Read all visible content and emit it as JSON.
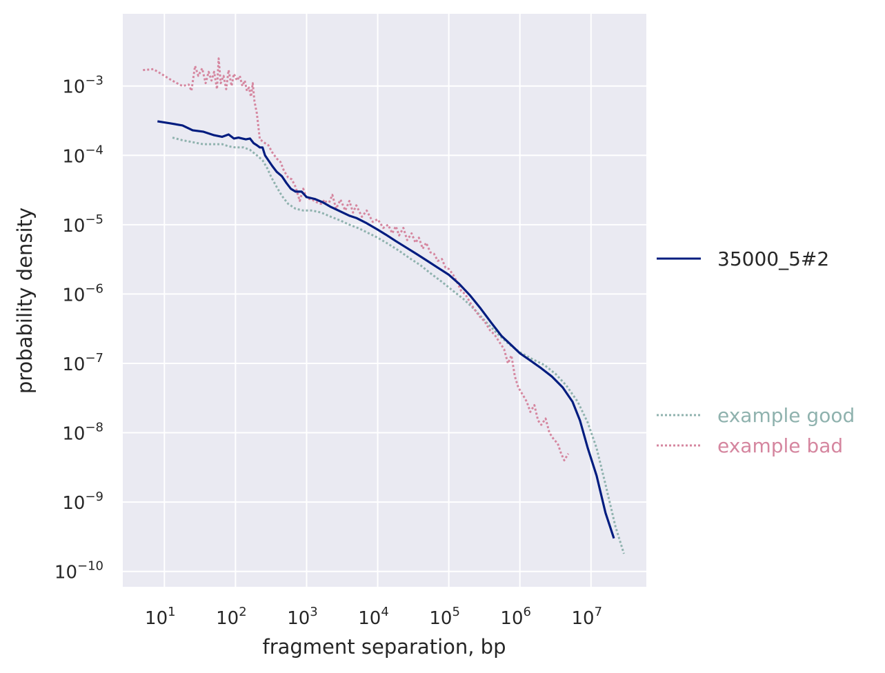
{
  "chart_data": {
    "type": "line",
    "xlabel": "fragment separation, bp",
    "ylabel": "probability density",
    "x_scale": "log",
    "y_scale": "log",
    "xlim": [
      2.6,
      60000000.0
    ],
    "ylim": [
      6e-11,
      0.011
    ],
    "x_ticks": [
      {
        "value": 10,
        "base": "10",
        "exp": "1"
      },
      {
        "value": 100,
        "base": "10",
        "exp": "2"
      },
      {
        "value": 1000,
        "base": "10",
        "exp": "3"
      },
      {
        "value": 10000,
        "base": "10",
        "exp": "4"
      },
      {
        "value": 100000,
        "base": "10",
        "exp": "5"
      },
      {
        "value": 1000000,
        "base": "10",
        "exp": "6"
      },
      {
        "value": 10000000,
        "base": "10",
        "exp": "7"
      }
    ],
    "y_ticks": [
      {
        "value": 0.001,
        "base": "10",
        "exp": "−3"
      },
      {
        "value": 0.0001,
        "base": "10",
        "exp": "−4"
      },
      {
        "value": 1e-05,
        "base": "10",
        "exp": "−5"
      },
      {
        "value": 1e-06,
        "base": "10",
        "exp": "−6"
      },
      {
        "value": 1e-07,
        "base": "10",
        "exp": "−7"
      },
      {
        "value": 1e-08,
        "base": "10",
        "exp": "−8"
      },
      {
        "value": 1e-09,
        "base": "10",
        "exp": "−9"
      },
      {
        "value": 1e-10,
        "base": "10",
        "exp": "−10"
      }
    ],
    "grid": true,
    "background": "#eaeaf2",
    "series": [
      {
        "name": "35000_5#2",
        "color": "#001c7f",
        "style": "solid",
        "points": [
          [
            8,
            0.00031
          ],
          [
            12,
            0.00029
          ],
          [
            18,
            0.00027
          ],
          [
            25,
            0.00023
          ],
          [
            35,
            0.00022
          ],
          [
            50,
            0.000195
          ],
          [
            65,
            0.000185
          ],
          [
            80,
            0.0002
          ],
          [
            95,
            0.000175
          ],
          [
            110,
            0.00018
          ],
          [
            125,
            0.000175
          ],
          [
            140,
            0.00017
          ],
          [
            160,
            0.000175
          ],
          [
            180,
            0.00015
          ],
          [
            200,
            0.00014
          ],
          [
            220,
            0.00013
          ],
          [
            240,
            0.00013
          ],
          [
            260,
            0.0001
          ],
          [
            290,
            8.5e-05
          ],
          [
            330,
            7e-05
          ],
          [
            380,
            5.8e-05
          ],
          [
            450,
            5e-05
          ],
          [
            520,
            4e-05
          ],
          [
            600,
            3.3e-05
          ],
          [
            700,
            3e-05
          ],
          [
            850,
            3e-05
          ],
          [
            1000,
            2.5e-05
          ],
          [
            1300,
            2.35e-05
          ],
          [
            1700,
            2.1e-05
          ],
          [
            2200,
            1.8e-05
          ],
          [
            3000,
            1.55e-05
          ],
          [
            4000,
            1.35e-05
          ],
          [
            5000,
            1.25e-05
          ],
          [
            7000,
            1.05e-05
          ],
          [
            10000,
            8.5e-06
          ],
          [
            13000,
            7.2e-06
          ],
          [
            18000,
            5.8e-06
          ],
          [
            25000,
            4.7e-06
          ],
          [
            35000,
            3.8e-06
          ],
          [
            50000,
            3e-06
          ],
          [
            70000,
            2.4e-06
          ],
          [
            100000,
            1.9e-06
          ],
          [
            140000,
            1.4e-06
          ],
          [
            200000,
            9.5e-07
          ],
          [
            280000,
            6.2e-07
          ],
          [
            400000,
            3.8e-07
          ],
          [
            550000,
            2.5e-07
          ],
          [
            750000,
            1.85e-07
          ],
          [
            1000000,
            1.4e-07
          ],
          [
            1400000,
            1.1e-07
          ],
          [
            2000000,
            8.5e-08
          ],
          [
            2800000,
            6.5e-08
          ],
          [
            4000000,
            4.5e-08
          ],
          [
            5500000,
            2.8e-08
          ],
          [
            7000000,
            1.5e-08
          ],
          [
            9000000,
            6e-09
          ],
          [
            12000000,
            2.4e-09
          ],
          [
            16000000,
            7e-10
          ],
          [
            21000000,
            3e-10
          ]
        ]
      },
      {
        "name": "example good",
        "color": "#8fb2ae",
        "style": "dotted",
        "points": [
          [
            13,
            0.00018
          ],
          [
            18,
            0.000165
          ],
          [
            25,
            0.000155
          ],
          [
            35,
            0.000145
          ],
          [
            50,
            0.000145
          ],
          [
            65,
            0.000145
          ],
          [
            80,
            0.000135
          ],
          [
            100,
            0.00013
          ],
          [
            130,
            0.00013
          ],
          [
            160,
            0.00012
          ],
          [
            200,
            0.0001
          ],
          [
            240,
            8.5e-05
          ],
          [
            280,
            6.5e-05
          ],
          [
            320,
            4.8e-05
          ],
          [
            380,
            3.5e-05
          ],
          [
            450,
            2.6e-05
          ],
          [
            550,
            2e-05
          ],
          [
            700,
            1.7e-05
          ],
          [
            900,
            1.6e-05
          ],
          [
            1200,
            1.6e-05
          ],
          [
            1600,
            1.5e-05
          ],
          [
            2200,
            1.3e-05
          ],
          [
            3000,
            1.15e-05
          ],
          [
            4000,
            1e-05
          ],
          [
            5500,
            8.8e-06
          ],
          [
            7500,
            7.5e-06
          ],
          [
            10000,
            6.5e-06
          ],
          [
            14000,
            5.3e-06
          ],
          [
            20000,
            4.2e-06
          ],
          [
            28000,
            3.3e-06
          ],
          [
            40000,
            2.6e-06
          ],
          [
            55000,
            2e-06
          ],
          [
            80000,
            1.5e-06
          ],
          [
            110000,
            1.15e-06
          ],
          [
            160000,
            8.5e-07
          ],
          [
            230000,
            6e-07
          ],
          [
            330000,
            4e-07
          ],
          [
            480000,
            2.7e-07
          ],
          [
            700000,
            1.9e-07
          ],
          [
            1000000,
            1.45e-07
          ],
          [
            1500000,
            1.15e-07
          ],
          [
            2200000,
            9.5e-08
          ],
          [
            3200000,
            7e-08
          ],
          [
            4500000,
            4.8e-08
          ],
          [
            6500000,
            2.8e-08
          ],
          [
            9000000,
            1.4e-08
          ],
          [
            12000000,
            6e-09
          ],
          [
            16000000,
            1.8e-09
          ],
          [
            22000000,
            4.5e-10
          ],
          [
            29000000,
            1.8e-10
          ]
        ]
      },
      {
        "name": "example bad",
        "color": "#d5869f",
        "style": "dotted",
        "points": [
          [
            5,
            0.0017
          ],
          [
            7,
            0.00175
          ],
          [
            9,
            0.0015
          ],
          [
            12,
            0.00125
          ],
          [
            15,
            0.0011
          ],
          [
            18,
            0.001
          ],
          [
            22,
            0.00105
          ],
          [
            24,
            0.00085
          ],
          [
            27,
            0.00195
          ],
          [
            30,
            0.0014
          ],
          [
            34,
            0.0018
          ],
          [
            38,
            0.0011
          ],
          [
            42,
            0.0016
          ],
          [
            46,
            0.0012
          ],
          [
            50,
            0.0016
          ],
          [
            55,
            0.0009
          ],
          [
            58,
            0.0025
          ],
          [
            62,
            0.0011
          ],
          [
            68,
            0.0014
          ],
          [
            74,
            0.0009
          ],
          [
            80,
            0.0017
          ],
          [
            88,
            0.001
          ],
          [
            95,
            0.0015
          ],
          [
            105,
            0.0012
          ],
          [
            115,
            0.0014
          ],
          [
            125,
            0.001
          ],
          [
            135,
            0.0012
          ],
          [
            145,
            0.00085
          ],
          [
            155,
            0.00095
          ],
          [
            165,
            0.0007
          ],
          [
            175,
            0.0011
          ],
          [
            185,
            0.0006
          ],
          [
            200,
            0.0004
          ],
          [
            220,
            0.00017
          ],
          [
            240,
            0.00016
          ],
          [
            260,
            0.00015
          ],
          [
            290,
            0.00014
          ],
          [
            330,
            0.00011
          ],
          [
            380,
            9e-05
          ],
          [
            430,
            8e-05
          ],
          [
            480,
            6e-05
          ],
          [
            550,
            4.8e-05
          ],
          [
            620,
            4.5e-05
          ],
          [
            700,
            3.5e-05
          ],
          [
            800,
            2.2e-05
          ],
          [
            900,
            3.3e-05
          ],
          [
            1000,
            2.4e-05
          ],
          [
            1200,
            2.3e-05
          ],
          [
            1400,
            2.1e-05
          ],
          [
            1600,
            2e-05
          ],
          [
            1800,
            2.3e-05
          ],
          [
            2000,
            1.9e-05
          ],
          [
            2300,
            2.7e-05
          ],
          [
            2600,
            1.7e-05
          ],
          [
            3000,
            2.3e-05
          ],
          [
            3500,
            1.6e-05
          ],
          [
            4000,
            2.2e-05
          ],
          [
            4500,
            1.5e-05
          ],
          [
            5000,
            1.9e-05
          ],
          [
            6000,
            1.3e-05
          ],
          [
            7000,
            1.6e-05
          ],
          [
            8500,
            1.1e-05
          ],
          [
            10000,
            1.2e-05
          ],
          [
            12000,
            9e-06
          ],
          [
            14000,
            1e-05
          ],
          [
            16000,
            7.5e-06
          ],
          [
            18000,
            9.5e-06
          ],
          [
            20000,
            7e-06
          ],
          [
            23000,
            9e-06
          ],
          [
            26000,
            6e-06
          ],
          [
            30000,
            7.5e-06
          ],
          [
            34000,
            5.5e-06
          ],
          [
            38000,
            6.5e-06
          ],
          [
            43000,
            4.5e-06
          ],
          [
            48000,
            5.5e-06
          ],
          [
            55000,
            4e-06
          ],
          [
            62000,
            3.8e-06
          ],
          [
            70000,
            3e-06
          ],
          [
            80000,
            3.2e-06
          ],
          [
            90000,
            2.4e-06
          ],
          [
            100000,
            2.3e-06
          ],
          [
            115000,
            1.9e-06
          ],
          [
            130000,
            1.5e-06
          ],
          [
            150000,
            1.1e-06
          ],
          [
            170000,
            1e-06
          ],
          [
            200000,
            7.5e-07
          ],
          [
            230000,
            6e-07
          ],
          [
            270000,
            4.8e-07
          ],
          [
            320000,
            4e-07
          ],
          [
            380000,
            3e-07
          ],
          [
            440000,
            2.6e-07
          ],
          [
            520000,
            2e-07
          ],
          [
            600000,
            1.6e-07
          ],
          [
            680000,
            1e-07
          ],
          [
            760000,
            1.3e-07
          ],
          [
            850000,
            6.5e-08
          ],
          [
            950000,
            4.5e-08
          ],
          [
            1100000,
            3.5e-08
          ],
          [
            1250000,
            2.8e-08
          ],
          [
            1400000,
            2e-08
          ],
          [
            1600000,
            2.5e-08
          ],
          [
            1800000,
            1.5e-08
          ],
          [
            2000000,
            1.3e-08
          ],
          [
            2300000,
            1.6e-08
          ],
          [
            2600000,
            1e-08
          ],
          [
            3000000,
            8e-09
          ],
          [
            3400000,
            7e-09
          ],
          [
            3800000,
            5e-09
          ],
          [
            4200000,
            4e-09
          ],
          [
            4800000,
            5e-09
          ]
        ]
      }
    ],
    "legend": {
      "placement": "right",
      "entries": [
        {
          "label": "35000_5#2",
          "color": "#001c7f",
          "text_color": "#262626",
          "style": "solid"
        },
        {
          "label": "example good",
          "color": "#8fb2ae",
          "text_color": "#8fb2ae",
          "style": "dotted"
        },
        {
          "label": "example bad",
          "color": "#d5869f",
          "text_color": "#d5869f",
          "style": "dotted"
        }
      ]
    }
  }
}
